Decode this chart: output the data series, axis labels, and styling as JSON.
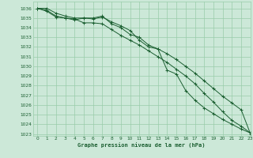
{
  "title": "Graphe pression niveau de la mer (hPa)",
  "bg_color": "#cce8d8",
  "grid_color": "#99ccaa",
  "line_color": "#1a5e30",
  "xlim": [
    -0.5,
    23
  ],
  "ylim": [
    1022.8,
    1036.7
  ],
  "xticks": [
    0,
    1,
    2,
    3,
    4,
    5,
    6,
    7,
    8,
    9,
    10,
    11,
    12,
    13,
    14,
    15,
    16,
    17,
    18,
    19,
    20,
    21,
    22,
    23
  ],
  "yticks": [
    1023,
    1024,
    1025,
    1026,
    1027,
    1028,
    1029,
    1030,
    1031,
    1032,
    1033,
    1034,
    1035,
    1036
  ],
  "series": [
    [
      1036.0,
      1035.8,
      1035.2,
      1035.0,
      1034.8,
      1035.0,
      1034.9,
      1035.1,
      1034.6,
      1034.2,
      1033.7,
      1032.7,
      1032.0,
      1031.8,
      1031.3,
      1030.7,
      1030.0,
      1029.3,
      1028.5,
      1027.7,
      1026.9,
      1026.2,
      1025.5,
      1023.0
    ],
    [
      1036.0,
      1035.7,
      1035.1,
      1035.0,
      1034.9,
      1034.5,
      1034.5,
      1034.4,
      1033.8,
      1033.2,
      1032.7,
      1032.2,
      1031.6,
      1031.0,
      1030.4,
      1029.7,
      1029.0,
      1028.2,
      1027.2,
      1026.3,
      1025.3,
      1024.4,
      1023.8,
      1023.1
    ],
    [
      1036.0,
      1036.0,
      1035.5,
      1035.2,
      1035.0,
      1035.0,
      1035.0,
      1035.2,
      1034.4,
      1034.0,
      1033.3,
      1033.0,
      1032.2,
      1031.8,
      1029.6,
      1029.2,
      1027.5,
      1026.5,
      1025.7,
      1025.1,
      1024.5,
      1024.0,
      1023.5,
      1023.1
    ]
  ]
}
